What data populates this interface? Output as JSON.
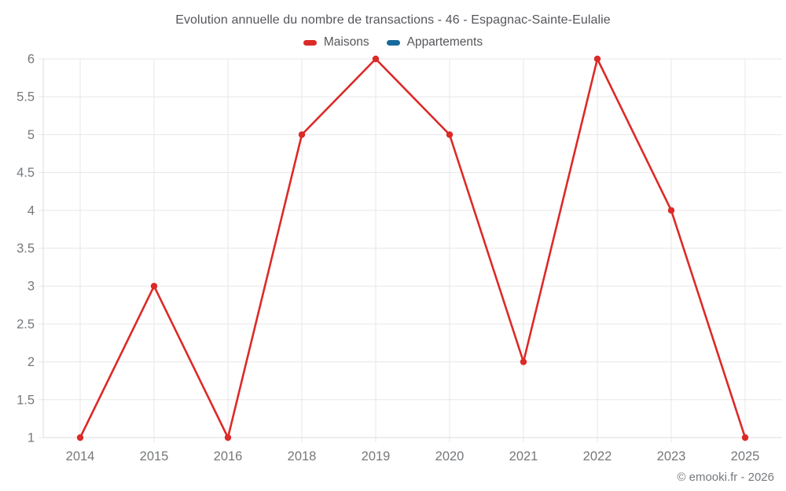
{
  "header": {
    "title": "Evolution annuelle du nombre de transactions - 46 - Espagnac-Sainte-Eulalie"
  },
  "legend": {
    "items": [
      {
        "label": "Maisons",
        "color": "#dc2a27"
      },
      {
        "label": "Appartements",
        "color": "#17699c"
      }
    ]
  },
  "footer": {
    "copyright": "© emooki.fr - 2026"
  },
  "chart_data": {
    "type": "line",
    "title": "Evolution annuelle du nombre de transactions - 46 - Espagnac-Sainte-Eulalie",
    "categories": [
      "2014",
      "2015",
      "2016",
      "2018",
      "2019",
      "2020",
      "2021",
      "2022",
      "2023",
      "2025"
    ],
    "series": [
      {
        "name": "Maisons",
        "color": "#dc2a27",
        "values": [
          1,
          3,
          1,
          5,
          6,
          5,
          2,
          6,
          4,
          1
        ]
      },
      {
        "name": "Appartements",
        "color": "#17699c",
        "values": []
      }
    ],
    "xlabel": "",
    "ylabel": "",
    "ylim": [
      1,
      6
    ],
    "yticks": [
      "1",
      "1.5",
      "2",
      "2.5",
      "3",
      "3.5",
      "4",
      "4.5",
      "5",
      "5.5",
      "6"
    ],
    "grid": true,
    "legend_position": "top",
    "point_style": "circle",
    "grid_color": "#e7e7e9",
    "border_color": "#dcdcde",
    "tick_color": "#75787b"
  }
}
